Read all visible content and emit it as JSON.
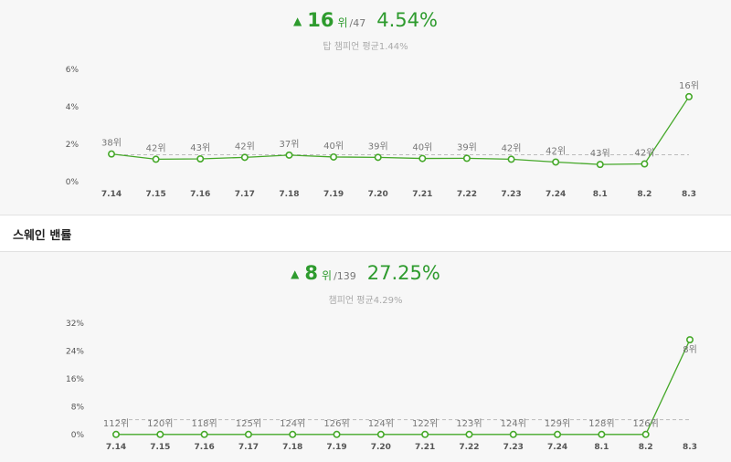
{
  "section2": {
    "title": "스웨인 밴률"
  },
  "panel1": {
    "arrow": "▲",
    "rank": "16",
    "rank_unit": "위",
    "rank_total": "/47",
    "rate": "4.54%",
    "average": "탑 챔피언 평균1.44%"
  },
  "panel2": {
    "arrow": "▲",
    "rank": "8",
    "rank_unit": "위",
    "rank_total": "/139",
    "rate": "27.25%",
    "average": "챔피언 평균4.29%"
  },
  "colors": {
    "line": "#45a829",
    "accent": "#2e9b2e",
    "avg_line": "#bbbbbb"
  },
  "chart_data": [
    {
      "type": "line",
      "categories": [
        "7.14",
        "7.15",
        "7.16",
        "7.17",
        "7.18",
        "7.19",
        "7.20",
        "7.21",
        "7.22",
        "7.23",
        "7.24",
        "8.1",
        "8.2",
        "8.3"
      ],
      "series": [
        {
          "values": [
            1.48,
            1.2,
            1.22,
            1.3,
            1.42,
            1.32,
            1.3,
            1.24,
            1.25,
            1.2,
            1.05,
            0.92,
            0.95,
            4.54
          ],
          "labels": [
            "38위",
            "42위",
            "43위",
            "42위",
            "37위",
            "40위",
            "39위",
            "40위",
            "39위",
            "42위",
            "42위",
            "43위",
            "42위",
            "16위"
          ]
        }
      ],
      "average": 1.44,
      "yticks": [
        "0%",
        "2%",
        "4%",
        "6%"
      ],
      "ylim": [
        0,
        6
      ]
    },
    {
      "type": "line",
      "categories": [
        "7.14",
        "7.15",
        "7.16",
        "7.17",
        "7.18",
        "7.19",
        "7.20",
        "7.21",
        "7.22",
        "7.23",
        "7.24",
        "8.1",
        "8.2",
        "8.3"
      ],
      "series": [
        {
          "values": [
            0.05,
            0.05,
            0.05,
            0.05,
            0.05,
            0.05,
            0.05,
            0.05,
            0.05,
            0.05,
            0.05,
            0.05,
            0.05,
            27.25
          ],
          "labels": [
            "112위",
            "120위",
            "118위",
            "125위",
            "124위",
            "126위",
            "124위",
            "122위",
            "123위",
            "124위",
            "129위",
            "128위",
            "126위",
            "8위"
          ]
        }
      ],
      "average": 4.29,
      "yticks": [
        "0%",
        "8%",
        "16%",
        "24%",
        "32%"
      ],
      "ylim": [
        0,
        32
      ]
    }
  ]
}
